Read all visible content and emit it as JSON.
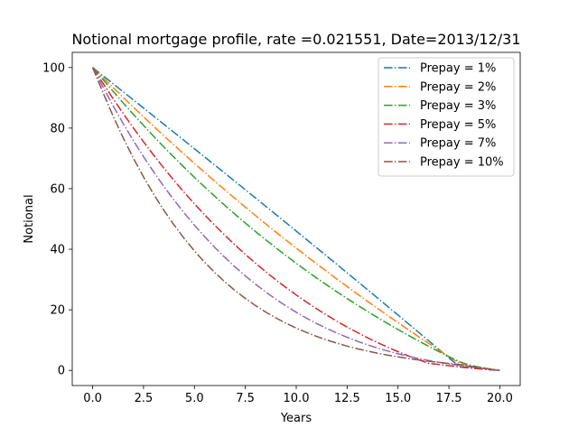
{
  "chart_data": {
    "type": "line",
    "title": "Notional mortgage profile, rate =0.021551, Date=2013/12/31",
    "xlabel": "Years",
    "ylabel": "Notional",
    "xlim": [
      -1.0,
      21.0
    ],
    "ylim": [
      -5.0,
      105.0
    ],
    "xticks": [
      "0.0",
      "2.5",
      "5.0",
      "7.5",
      "10.0",
      "12.5",
      "15.0",
      "17.5",
      "20.0"
    ],
    "yticks": [
      "0",
      "20",
      "40",
      "60",
      "80",
      "100"
    ],
    "grid": false,
    "legend_position": "top-right",
    "line_style": "dash-dot",
    "x": [
      0,
      0.5,
      1,
      1.5,
      2,
      2.5,
      3,
      3.5,
      4,
      4.5,
      5,
      5.5,
      6,
      6.5,
      7,
      7.5,
      8,
      8.5,
      9,
      9.5,
      10,
      10.5,
      11,
      11.5,
      12,
      12.5,
      13,
      13.5,
      14,
      14.5,
      15,
      15.5,
      16,
      16.5,
      17,
      17.5,
      18,
      18.5,
      19,
      19.5,
      20
    ],
    "series": [
      {
        "name": "Prepay = 1%",
        "color": "#1f77b4",
        "values": [
          100,
          97.35,
          94.67,
          91.99,
          89.31,
          86.63,
          83.94,
          81.26,
          78.57,
          75.88,
          73.18,
          70.48,
          67.78,
          65.07,
          62.36,
          59.65,
          56.93,
          54.2,
          51.47,
          48.74,
          46.0,
          43.25,
          40.5,
          37.74,
          34.98,
          32.21,
          29.43,
          26.65,
          23.86,
          21.06,
          18.26,
          15.45,
          12.63,
          9.8,
          6.97,
          4.13,
          1.28,
          0.85,
          0.55,
          0.25,
          0
        ]
      },
      {
        "name": "Prepay = 2%",
        "color": "#ff7f0e",
        "values": [
          100,
          96.73,
          93.42,
          90.14,
          86.91,
          83.72,
          80.56,
          77.45,
          74.37,
          71.34,
          68.34,
          65.38,
          62.46,
          59.57,
          56.72,
          53.91,
          51.13,
          48.39,
          45.68,
          43.01,
          40.37,
          37.77,
          35.2,
          32.66,
          30.15,
          27.67,
          25.23,
          22.81,
          20.43,
          18.07,
          15.74,
          13.44,
          11.17,
          8.93,
          6.71,
          4.52,
          2.37,
          1.35,
          0.8,
          0.35,
          0
        ]
      },
      {
        "name": "Prepay = 3%",
        "color": "#2ca02c",
        "values": [
          100,
          96.12,
          92.18,
          88.32,
          84.56,
          80.88,
          77.28,
          73.77,
          70.35,
          67.01,
          63.75,
          60.58,
          57.48,
          54.46,
          51.52,
          48.65,
          45.85,
          43.13,
          40.48,
          37.89,
          35.37,
          32.91,
          30.52,
          28.19,
          25.92,
          23.71,
          21.56,
          19.46,
          17.42,
          15.43,
          13.49,
          11.6,
          9.76,
          7.97,
          6.23,
          4.54,
          2.9,
          1.8,
          1.05,
          0.45,
          0
        ]
      },
      {
        "name": "Prepay = 5%",
        "color": "#d62728",
        "values": [
          100,
          94.89,
          89.78,
          84.83,
          80.06,
          75.47,
          71.05,
          66.79,
          62.7,
          58.77,
          55.0,
          51.38,
          47.9,
          44.57,
          41.37,
          38.31,
          35.38,
          32.58,
          29.9,
          27.34,
          24.9,
          22.57,
          20.35,
          18.24,
          16.23,
          14.32,
          12.51,
          10.79,
          9.17,
          7.63,
          6.18,
          4.82,
          3.54,
          2.35,
          1.95,
          1.55,
          1.15,
          0.8,
          0.5,
          0.2,
          0
        ]
      },
      {
        "name": "Prepay = 7%",
        "color": "#9467bd",
        "values": [
          100,
          93.67,
          87.44,
          81.52,
          75.89,
          70.56,
          65.51,
          60.73,
          56.22,
          51.96,
          47.95,
          44.17,
          40.61,
          37.27,
          34.14,
          31.2,
          28.46,
          25.89,
          23.5,
          21.27,
          19.2,
          17.27,
          15.49,
          13.84,
          12.32,
          10.92,
          9.63,
          8.45,
          7.37,
          6.38,
          5.48,
          4.67,
          3.93,
          3.27,
          2.67,
          2.14,
          1.67,
          1.2,
          0.8,
          0.4,
          0
        ]
      },
      {
        "name": "Prepay = 10%",
        "color": "#8c564b",
        "values": [
          100,
          91.87,
          84.05,
          76.8,
          70.08,
          63.87,
          58.14,
          52.86,
          48.01,
          43.55,
          39.47,
          35.73,
          32.31,
          29.19,
          26.35,
          23.76,
          21.4,
          19.26,
          17.32,
          15.56,
          13.97,
          12.52,
          11.22,
          10.04,
          8.98,
          8.02,
          7.15,
          6.37,
          5.66,
          5.02,
          4.45,
          3.93,
          3.46,
          3.03,
          2.64,
          2.28,
          1.95,
          1.42,
          0.95,
          0.48,
          0
        ]
      }
    ]
  }
}
